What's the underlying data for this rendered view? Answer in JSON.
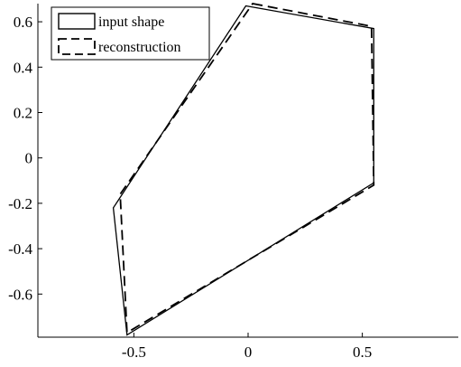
{
  "chart_data": {
    "type": "line",
    "title": "",
    "xlabel": "",
    "ylabel": "",
    "xlim": [
      -0.92,
      0.92
    ],
    "ylim": [
      -0.79,
      0.68
    ],
    "grid": false,
    "legend_position": "top-left",
    "x_ticks": [
      "-0.5",
      "0",
      "0.5"
    ],
    "x_tick_values": [
      -0.5,
      0,
      0.5
    ],
    "y_ticks": [
      "0.6",
      "0.4",
      "0.2",
      "0",
      "-0.2",
      "-0.4",
      "-0.6"
    ],
    "y_tick_values": [
      0.6,
      0.4,
      0.2,
      0,
      -0.2,
      -0.4,
      -0.6
    ],
    "series": [
      {
        "name": "input shape",
        "style": "solid",
        "color": "#000000",
        "closed": true,
        "points": [
          [
            -0.01,
            0.67
          ],
          [
            0.55,
            0.57
          ],
          [
            0.55,
            -0.11
          ],
          [
            -0.53,
            -0.78
          ],
          [
            -0.59,
            -0.22
          ]
        ]
      },
      {
        "name": "reconstruction",
        "style": "dashed",
        "color": "#000000",
        "closed": true,
        "points": [
          [
            0.02,
            0.68
          ],
          [
            0.54,
            0.58
          ],
          [
            0.55,
            -0.12
          ],
          [
            -0.53,
            -0.77
          ],
          [
            -0.56,
            -0.16
          ]
        ]
      }
    ]
  }
}
